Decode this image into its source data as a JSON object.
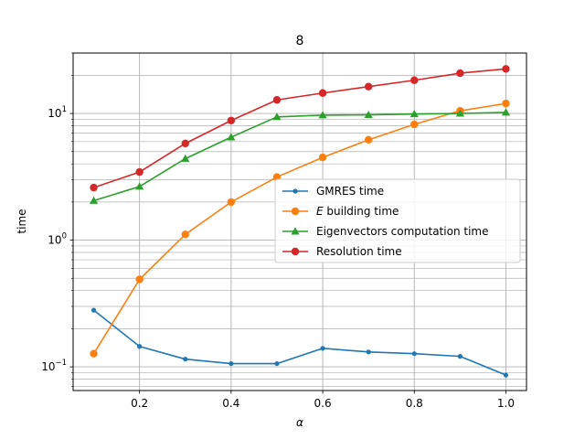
{
  "chart_data": {
    "type": "line",
    "title": "8",
    "xlabel": "α",
    "ylabel": "time",
    "yscale": "log",
    "xlim": [
      0.055,
      1.045
    ],
    "ylim": [
      0.065,
      30
    ],
    "grid": "both-major-and-minor",
    "legend_position": "center-right",
    "x": [
      0.1,
      0.2,
      0.3,
      0.4,
      0.5,
      0.6,
      0.7,
      0.8,
      0.9,
      1.0
    ],
    "x_ticks": [
      {
        "value": 0.2,
        "label": "0.2"
      },
      {
        "value": 0.4,
        "label": "0.4"
      },
      {
        "value": 0.6,
        "label": "0.6"
      },
      {
        "value": 0.8,
        "label": "0.8"
      },
      {
        "value": 1.0,
        "label": "1.0"
      }
    ],
    "y_ticks": [
      {
        "value": 0.1,
        "base": "10",
        "exp": "−1"
      },
      {
        "value": 1,
        "base": "10",
        "exp": "0"
      },
      {
        "value": 10,
        "base": "10",
        "exp": "1"
      }
    ],
    "series": [
      {
        "name": "GMRES time",
        "color": "#1f77b4",
        "marker": "small-circle",
        "values": [
          0.28,
          0.145,
          0.115,
          0.106,
          0.106,
          0.14,
          0.131,
          0.127,
          0.121,
          0.086
        ]
      },
      {
        "name": "E building time",
        "name_parts": {
          "italic": "E",
          "rest": " building time"
        },
        "color": "#ff7f0e",
        "marker": "circle",
        "values": [
          0.127,
          0.49,
          1.11,
          2.0,
          3.15,
          4.5,
          6.2,
          8.2,
          10.5,
          12.0
        ]
      },
      {
        "name": "Eigenvectors computation time",
        "color": "#2ca02c",
        "marker": "triangle",
        "values": [
          2.05,
          2.65,
          4.4,
          6.5,
          9.4,
          9.7,
          9.75,
          9.9,
          10.0,
          10.2
        ]
      },
      {
        "name": "Resolution time",
        "color": "#d62728",
        "marker": "circle",
        "values": [
          2.6,
          3.45,
          5.8,
          8.8,
          12.8,
          14.5,
          16.3,
          18.3,
          20.8,
          22.5
        ]
      }
    ]
  }
}
